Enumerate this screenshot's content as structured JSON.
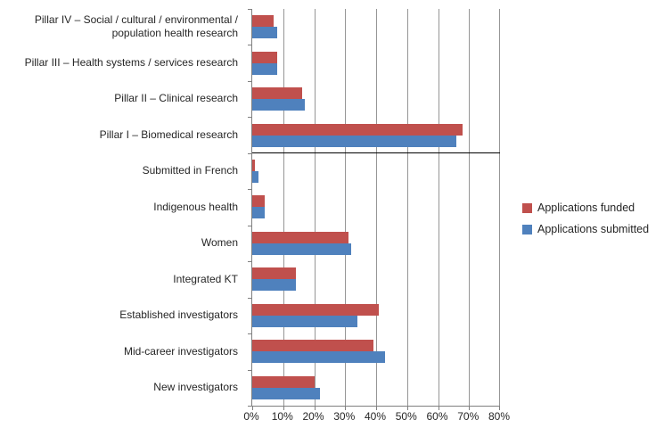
{
  "chart_data": {
    "type": "bar",
    "orientation": "horizontal",
    "title": "",
    "xlabel": "",
    "ylabel": "",
    "xlim": [
      0,
      80
    ],
    "x_ticks": [
      "0%",
      "10%",
      "20%",
      "30%",
      "40%",
      "50%",
      "60%",
      "70%",
      "80%"
    ],
    "grid": true,
    "legend_position": "right",
    "separator_after_index": 3,
    "categories": [
      "Pillar IV – Social / cultural / environmental / population health research",
      "Pillar III – Health systems / services research",
      "Pillar II – Clinical research",
      "Pillar I – Biomedical research",
      "Submitted in French",
      "Indigenous health",
      "Women",
      "Integrated KT",
      "Established investigators",
      "Mid-career investigators",
      "New investigators"
    ],
    "series": [
      {
        "name": "Applications funded",
        "key": "funded",
        "color": "#C0504D",
        "values": [
          7,
          8,
          16,
          68,
          1,
          4,
          31,
          14,
          41,
          39,
          20
        ]
      },
      {
        "name": "Applications submitted",
        "key": "submitted",
        "color": "#4F81BD",
        "values": [
          8,
          8,
          17,
          66,
          2,
          4,
          32,
          14,
          34,
          43,
          22
        ]
      }
    ]
  },
  "colors": {
    "gridline": "#969696",
    "axis": "#808080",
    "separator": "#000000",
    "text": "#262626",
    "background": "#FFFFFF"
  }
}
